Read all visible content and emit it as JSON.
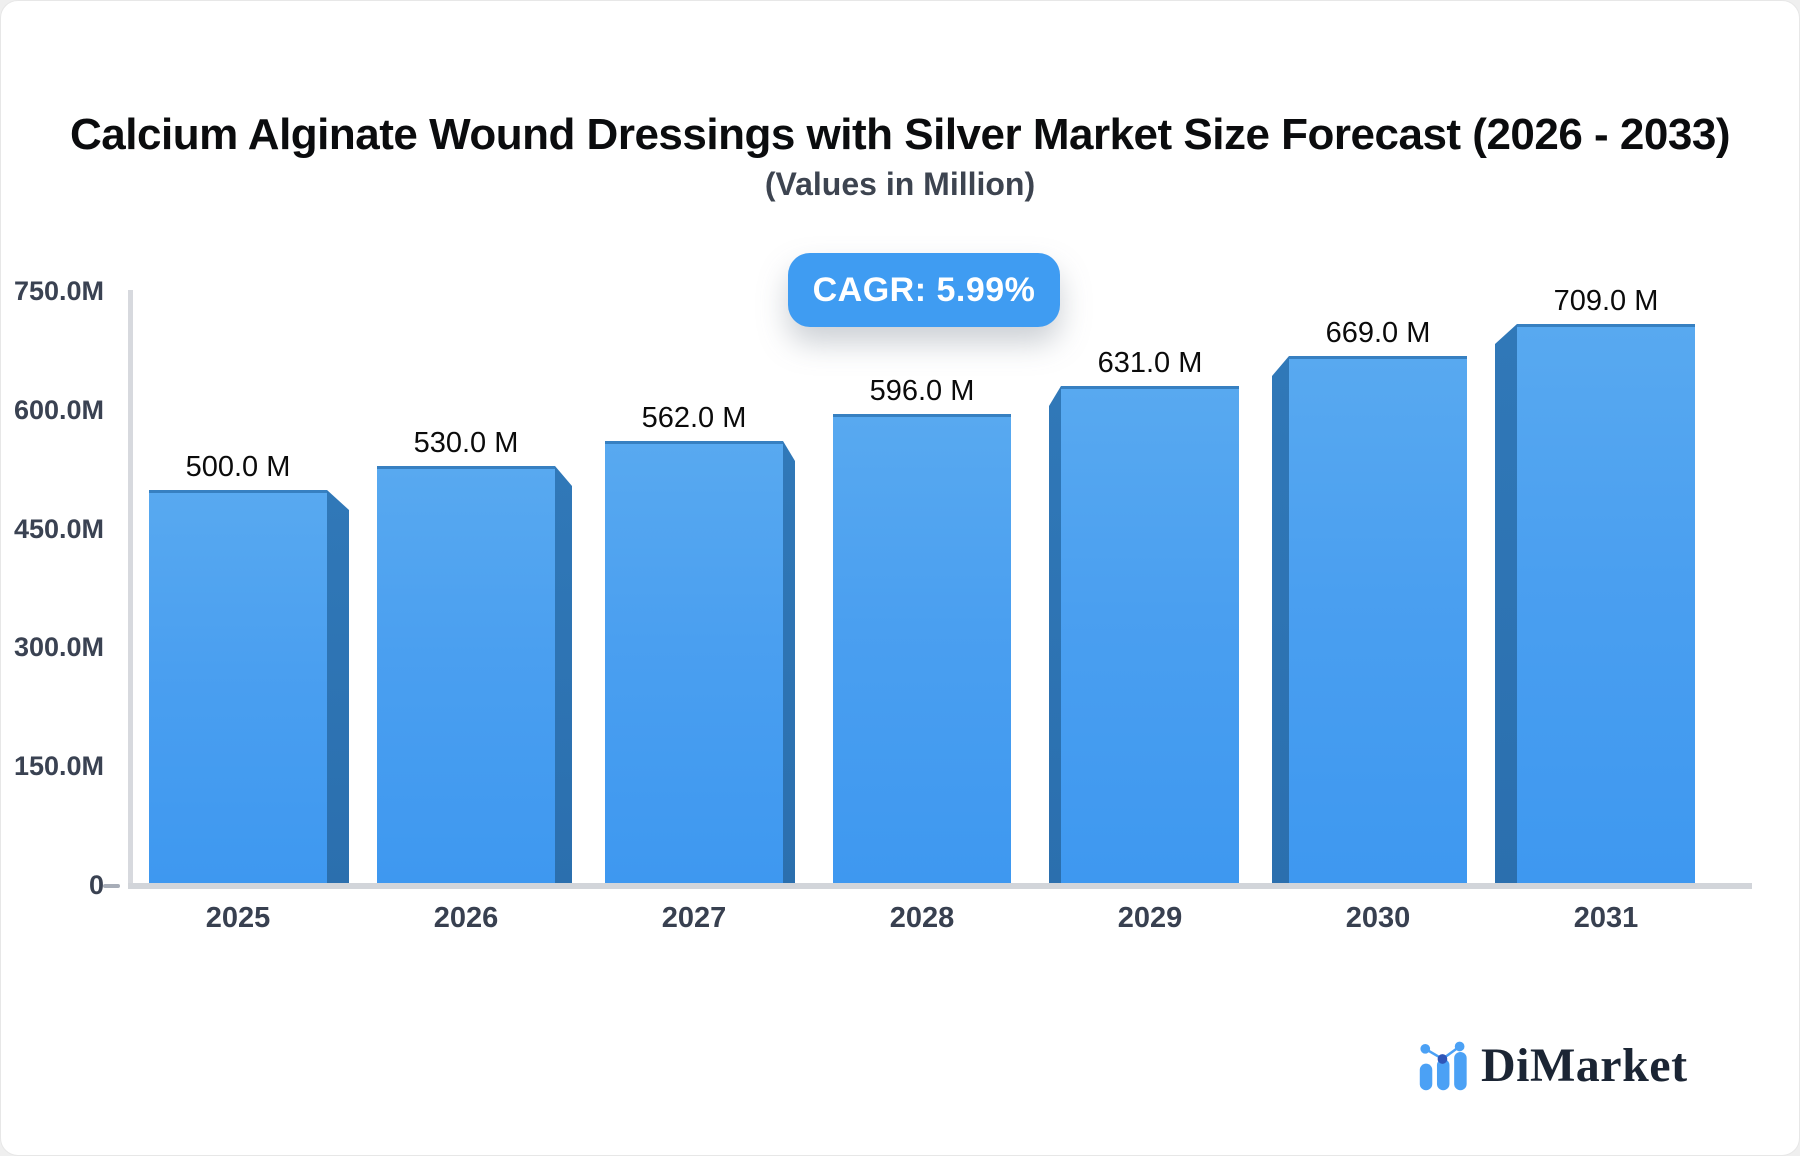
{
  "title": "Calcium Alginate Wound Dressings with Silver Market Size Forecast (2026 - 2033)",
  "subtitle": "(Values in Million)",
  "cagr_label": "CAGR: 5.99%",
  "logo": {
    "brand": "DiMarket",
    "icon": "mini-bar-chart-icon"
  },
  "chart_data": {
    "type": "bar",
    "title": "Calcium Alginate Wound Dressings with Silver Market Size Forecast (2026 - 2033)",
    "subtitle": "(Values in Million)",
    "unit": "Million",
    "cagr_percent": 5.99,
    "categories": [
      "2025",
      "2026",
      "2027",
      "2028",
      "2029",
      "2030",
      "2031"
    ],
    "values": [
      500,
      530,
      562,
      596,
      631,
      669,
      709
    ],
    "value_labels": [
      "500.0 M",
      "530.0 M",
      "562.0 M",
      "596.0 M",
      "631.0 M",
      "669.0 M",
      "709.0 M"
    ],
    "y_axis": {
      "tick_labels": [
        "750.0M",
        "600.0M",
        "450.0M",
        "300.0M",
        "150.0M",
        "0"
      ],
      "tick_values": [
        750,
        600,
        450,
        300,
        150,
        0
      ],
      "range": [
        0,
        750
      ]
    },
    "xlabel": "",
    "ylabel": "",
    "grid": false,
    "legend": false,
    "style_3d": true,
    "colors": {
      "bar_top": "#58a9f0",
      "bar_bottom": "#3e98f0",
      "bar_side": "#2d72b2",
      "accent": "#3f9cf2",
      "axis": "#d4d7dc",
      "tick_text": "#3a4252",
      "value_text": "#0b0b0b"
    }
  }
}
